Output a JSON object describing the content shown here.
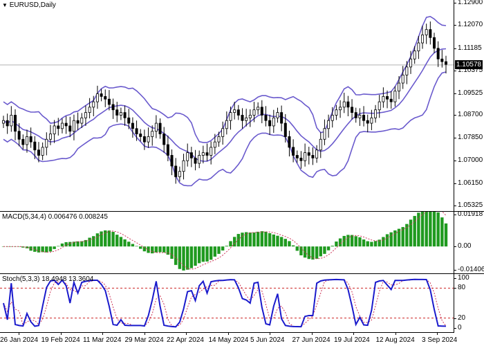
{
  "price_pane": {
    "title": "EURUSD,Daily",
    "axis_labels": [
      "1.12900",
      "1.12070",
      "1.11185",
      "1.10375",
      "1.09525",
      "1.08700",
      "1.07850",
      "1.07000",
      "1.06150",
      "1.05325"
    ],
    "current_price": "1.10578"
  },
  "macd_pane": {
    "title": "MACD(5,34,4) 0.006476 0.008245",
    "axis_labels": [
      "0.019187",
      "0.00",
      "-0.014065"
    ]
  },
  "stoch_pane": {
    "title": "Stoch(5,3,3) 18.4948 13.3604",
    "axis_labels": [
      "100",
      "80",
      "20",
      "0"
    ]
  },
  "time_axis": {
    "labels": [
      "26 Jan 2024",
      "19 Feb 2024",
      "11 Mar 2024",
      "29 Mar 2024",
      "22 Apr 2024",
      "14 May 2024",
      "5 Jun 2024",
      "27 Jun 2024",
      "19 Jul 2024",
      "12 Aug 2024",
      "3 Sep 2024"
    ]
  },
  "colors": {
    "band": "#6a5acd",
    "candle": "#000000",
    "macd_hist": "#1f9a1f",
    "macd_signal": "#cc3355",
    "stoch_main": "#1a1acc",
    "stoch_signal": "#cc3355",
    "level_line": "#cc2222"
  },
  "icons": {
    "title_arrow": "dropdown-triangle-icon"
  },
  "chart_data": {
    "type": "candlestick",
    "symbol": "EURUSD",
    "timeframe": "Daily",
    "y_range": [
      1.05325,
      1.129
    ],
    "close": [
      1.085,
      1.083,
      1.087,
      1.081,
      1.078,
      1.076,
      1.079,
      1.077,
      1.074,
      1.072,
      1.075,
      1.078,
      1.08,
      1.083,
      1.082,
      1.084,
      1.083,
      1.081,
      1.085,
      1.084,
      1.086,
      1.088,
      1.09,
      1.092,
      1.095,
      1.094,
      1.093,
      1.091,
      1.089,
      1.087,
      1.088,
      1.086,
      1.084,
      1.082,
      1.08,
      1.079,
      1.077,
      1.079,
      1.081,
      1.084,
      1.08,
      1.076,
      1.072,
      1.068,
      1.064,
      1.066,
      1.07,
      1.073,
      1.071,
      1.069,
      1.072,
      1.073,
      1.072,
      1.075,
      1.077,
      1.079,
      1.082,
      1.085,
      1.088,
      1.089,
      1.087,
      1.085,
      1.086,
      1.087,
      1.089,
      1.09,
      1.087,
      1.085,
      1.083,
      1.086,
      1.088,
      1.084,
      1.079,
      1.075,
      1.072,
      1.071,
      1.07,
      1.073,
      1.072,
      1.071,
      1.074,
      1.078,
      1.082,
      1.085,
      1.087,
      1.089,
      1.09,
      1.092,
      1.09,
      1.088,
      1.086,
      1.087,
      1.085,
      1.084,
      1.086,
      1.089,
      1.092,
      1.094,
      1.093,
      1.092,
      1.096,
      1.099,
      1.102,
      1.105,
      1.108,
      1.111,
      1.114,
      1.117,
      1.119,
      1.116,
      1.112,
      1.108,
      1.107,
      1.106
    ],
    "bollinger_upper_last": 1.11185,
    "macd": {
      "params": [
        5,
        34,
        4
      ],
      "value": 0.006476,
      "signal": 0.008245,
      "range": [
        -0.014065,
        0.019187
      ]
    },
    "stochastic": {
      "params": [
        5,
        3,
        3
      ],
      "k": 18.4948,
      "d": 13.3604,
      "levels": [
        20,
        80
      ],
      "range": [
        0,
        100
      ]
    }
  }
}
